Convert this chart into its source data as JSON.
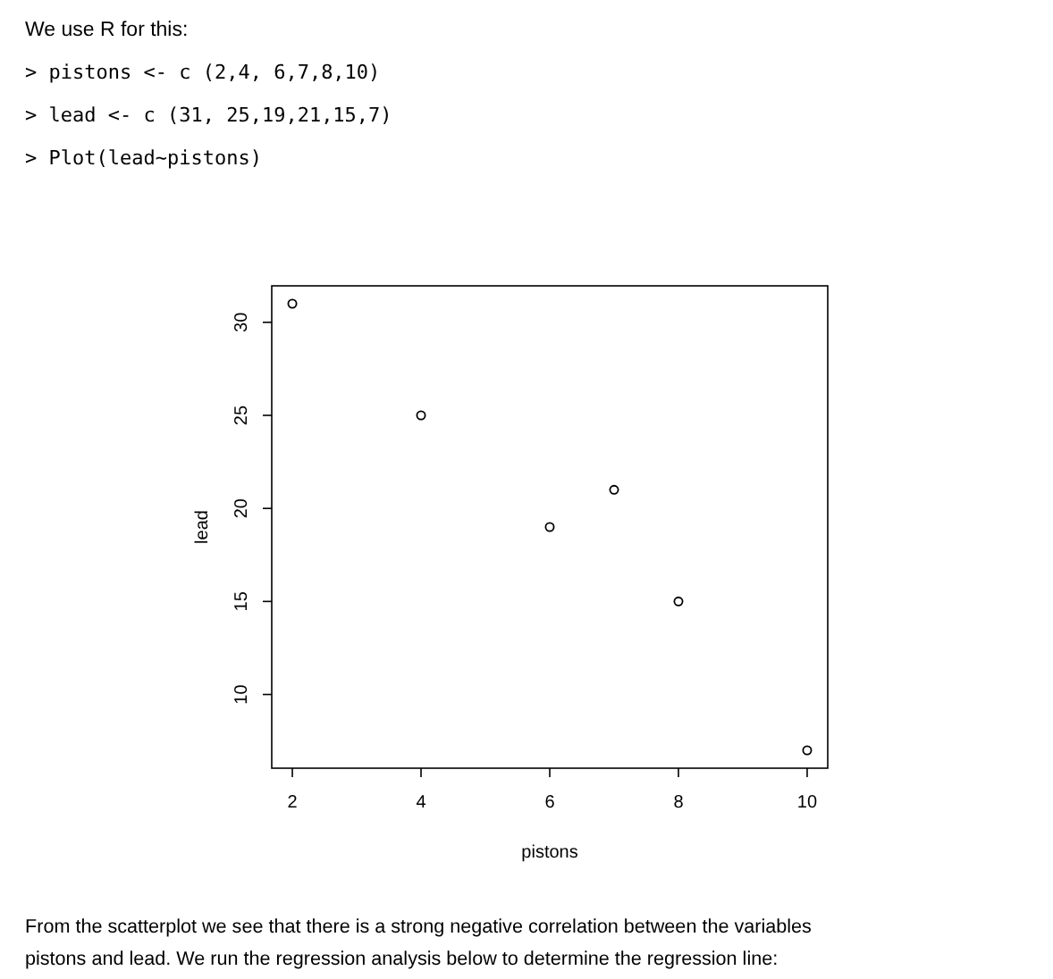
{
  "chart_data": {
    "type": "scatter",
    "title": "We use R for this:",
    "annotations": [
      "> pistons <- c (2,4, 6,7,8,10)",
      "> lead <- c (31, 25,19,21,15,7)",
      "> Plot(lead~pistons)",
      "From the scatterplot we see that there is a strong negative correlation between the variables pistons and lead. We run the regression analysis below to determine the regression line:"
    ],
    "xlabel": "pistons",
    "ylabel": "lead",
    "x": [
      2,
      4,
      6,
      7,
      8,
      10
    ],
    "values": [
      31,
      25,
      19,
      21,
      15,
      7
    ],
    "color": "#000000",
    "marker": "circle",
    "xlim": [
      1.68,
      10.32
    ],
    "ylim": [
      6.04,
      31.96
    ],
    "xticks": [
      2,
      4,
      6,
      8,
      10
    ],
    "yticks": [
      10,
      15,
      20,
      25,
      30
    ],
    "grid": false
  }
}
